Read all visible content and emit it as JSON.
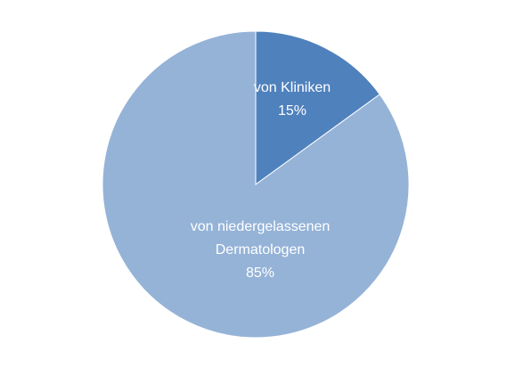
{
  "chart_data": {
    "type": "pie",
    "categories": [
      "von Kliniken",
      "von niedergelassenen Dermatologen"
    ],
    "values": [
      15,
      85
    ],
    "value_labels": [
      "15%",
      "85%"
    ],
    "colors": [
      "#4f81bd",
      "#95b3d7"
    ],
    "start_angle": 0,
    "direction": "clockwise"
  }
}
